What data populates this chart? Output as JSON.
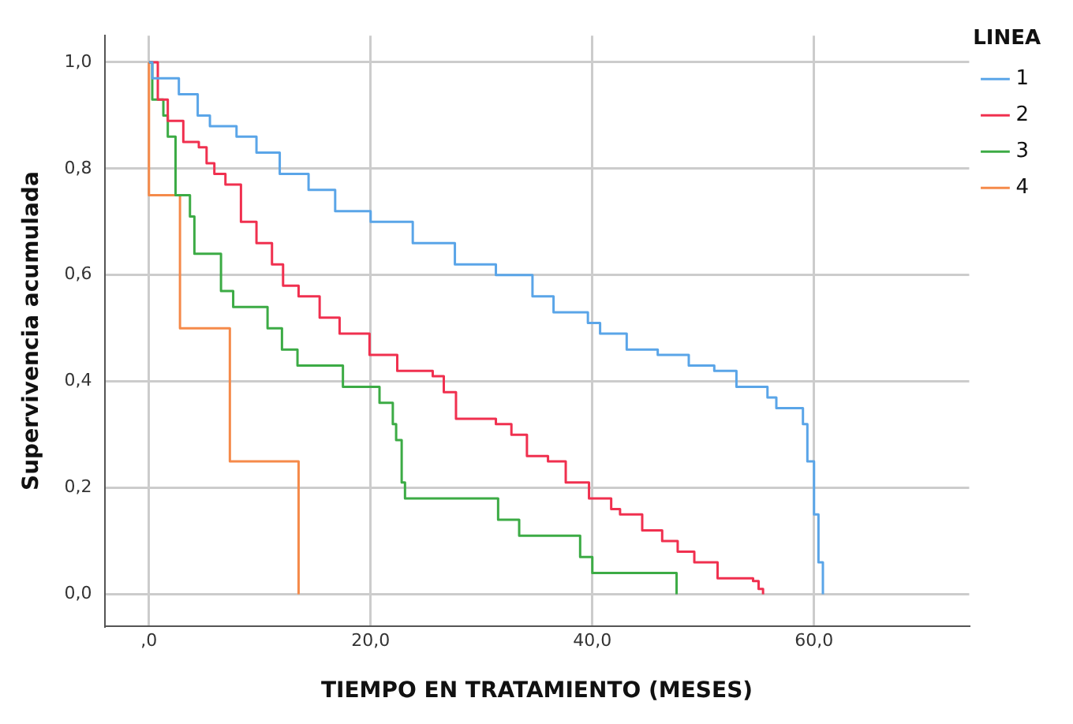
{
  "chart_data": {
    "type": "step",
    "xlabel": "TIEMPO EN TRATAMIENTO (MESES)",
    "ylabel": "Supervivencia acumulada",
    "legend_title": "LINEA",
    "legend": "top right",
    "grid": true,
    "marker": "none",
    "line_style": "solid",
    "xlim": [
      -4,
      74
    ],
    "xticks": [
      {
        "value": 0,
        "label": ",0"
      },
      {
        "value": 20,
        "label": "20,0"
      },
      {
        "value": 40,
        "label": "40,0"
      },
      {
        "value": 60,
        "label": "60,0"
      }
    ],
    "ylim": [
      -0.06,
      1.05
    ],
    "yticks": [
      {
        "value": 0,
        "label": "0,0"
      },
      {
        "value": 0.2,
        "label": "0,2"
      },
      {
        "value": 0.4,
        "label": "0,4"
      },
      {
        "value": 0.6,
        "label": "0,6"
      },
      {
        "value": 0.8,
        "label": "0,8"
      },
      {
        "value": 1,
        "label": "1,0"
      }
    ],
    "series": [
      {
        "name": "1",
        "color": "#5aa5e8",
        "x": [
          0,
          0.3,
          2.7,
          4.4,
          5.5,
          7.9,
          9.7,
          11.8,
          14.4,
          16.8,
          20,
          23.8,
          27.6,
          31.3,
          34.6,
          36.5,
          39.6,
          40.7,
          43.1,
          45.9,
          47.3,
          48.7,
          51,
          53,
          55.8,
          56.6,
          58.3,
          59,
          59.4,
          60,
          60.4,
          60.8
        ],
        "values": [
          1,
          0.97,
          0.94,
          0.9,
          0.88,
          0.86,
          0.83,
          0.79,
          0.76,
          0.72,
          0.7,
          0.66,
          0.62,
          0.6,
          0.56,
          0.53,
          0.51,
          0.49,
          0.46,
          0.45,
          0.45,
          0.43,
          0.42,
          0.39,
          0.37,
          0.35,
          0.35,
          0.32,
          0.25,
          0.15,
          0.06,
          0
        ]
      },
      {
        "name": "2",
        "color": "#f0304f",
        "x": [
          0,
          0.8,
          1.7,
          3.1,
          4.5,
          5.2,
          5.9,
          6.9,
          8.3,
          9.7,
          11.1,
          12.1,
          13.5,
          15.4,
          17.2,
          19.9,
          22.4,
          25.6,
          26.6,
          27.7,
          31.3,
          32.7,
          34.1,
          36,
          37.6,
          38.6,
          39.7,
          41.7,
          42.5,
          44.5,
          46.3,
          47.7,
          49.2,
          51.3,
          54.5,
          55,
          55.4
        ],
        "values": [
          1,
          0.93,
          0.89,
          0.85,
          0.84,
          0.81,
          0.79,
          0.77,
          0.7,
          0.66,
          0.62,
          0.58,
          0.56,
          0.52,
          0.49,
          0.45,
          0.42,
          0.41,
          0.38,
          0.33,
          0.32,
          0.3,
          0.26,
          0.25,
          0.21,
          0.21,
          0.18,
          0.16,
          0.15,
          0.12,
          0.1,
          0.08,
          0.06,
          0.03,
          0.025,
          0.01,
          0
        ]
      },
      {
        "name": "3",
        "color": "#3cab45",
        "x": [
          0,
          0.3,
          1.3,
          1.7,
          2.4,
          3.7,
          4.1,
          6.5,
          7.6,
          10.7,
          12,
          13.4,
          17.5,
          20.8,
          22,
          22.3,
          22.8,
          23.1,
          31.5,
          33.4,
          38.9,
          40,
          47.6
        ],
        "values": [
          1,
          0.93,
          0.9,
          0.86,
          0.75,
          0.71,
          0.64,
          0.57,
          0.54,
          0.5,
          0.46,
          0.43,
          0.39,
          0.36,
          0.32,
          0.29,
          0.21,
          0.18,
          0.14,
          0.11,
          0.07,
          0.04,
          0
        ]
      },
      {
        "name": "4",
        "color": "#f58a4a",
        "x": [
          0,
          0,
          2.8,
          7.3,
          13.5
        ],
        "values": [
          1,
          0.75,
          0.5,
          0.25,
          0
        ]
      }
    ]
  }
}
